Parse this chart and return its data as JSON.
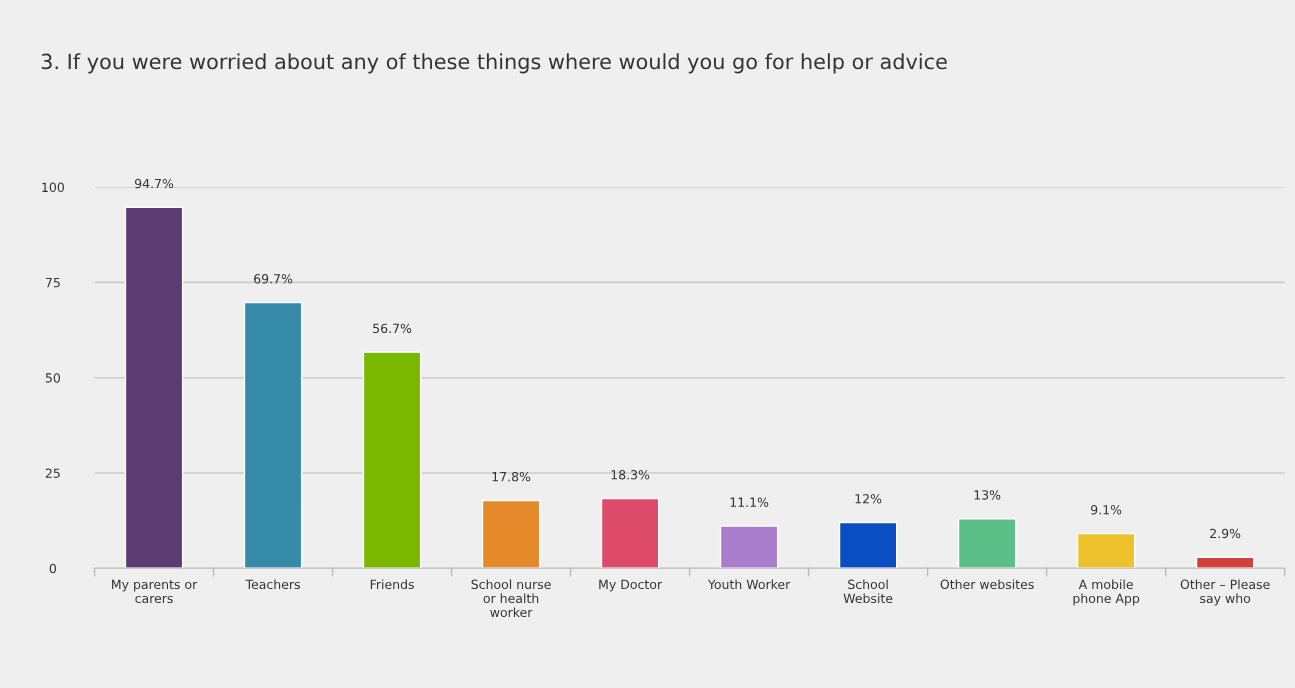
{
  "chart_data": {
    "type": "bar",
    "title": "3. If you were worried about any of these things where would you go for help or advice",
    "categories": [
      "My parents or\ncarers",
      "Teachers",
      "Friends",
      "School nurse\nor health\nworker",
      "My Doctor",
      "Youth Worker",
      "School\nWebsite",
      "Other websites",
      "A mobile\nphone App",
      "Other – Please\nsay who"
    ],
    "values": [
      94.7,
      69.7,
      56.7,
      17.8,
      18.3,
      11.1,
      12,
      13,
      9.1,
      2.9
    ],
    "colors": [
      "#5c3a72",
      "#348aa8",
      "#7ab800",
      "#e48a2a",
      "#de4a6a",
      "#a97ccc",
      "#0a4ec2",
      "#5cbf88",
      "#ecc22d",
      "#d2413a"
    ],
    "value_labels": [
      "94.7%",
      "69.7%",
      "56.7%",
      "17.8%",
      "18.3%",
      "11.1%",
      "12%",
      "13%",
      "9.1%",
      "2.9%"
    ],
    "ylim": [
      0,
      100
    ],
    "yticks": [
      0,
      25,
      50,
      75,
      100
    ],
    "grid": "y",
    "legend": false
  }
}
